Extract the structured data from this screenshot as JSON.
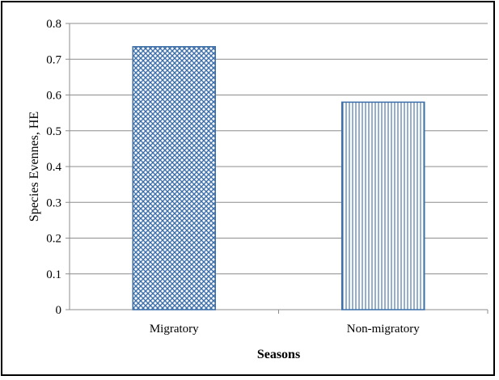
{
  "chart_data": {
    "type": "bar",
    "categories": [
      "Migratory",
      "Non-migratory"
    ],
    "values": [
      0.735,
      0.58
    ],
    "title": "",
    "xlabel": "Seasons",
    "ylabel": "Species Evennes, HE",
    "ylim": [
      0,
      0.8
    ],
    "yticks": [
      "0",
      "0.1",
      "0.2",
      "0.3",
      "0.4",
      "0.5",
      "0.6",
      "0.7",
      "0.8"
    ],
    "grid": true,
    "legend": "none",
    "bar_patterns": [
      "crosshatch-dots",
      "vertical-lines"
    ],
    "colors": {
      "bar_outline": "#3d6fa8",
      "pattern": "#3d6fa8",
      "grid": "#8c8c8c",
      "axis": "#8c8c8c"
    }
  }
}
